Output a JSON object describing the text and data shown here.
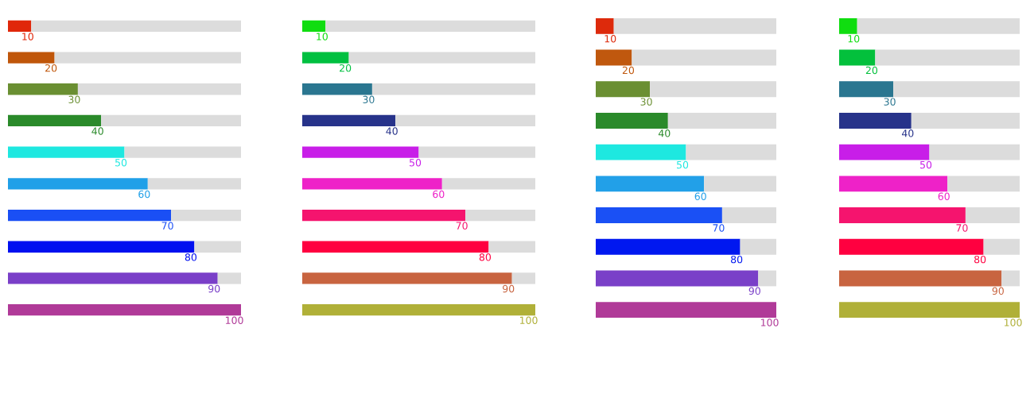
{
  "chart_data": [
    {
      "type": "bar",
      "orientation": "horizontal",
      "stacked": true,
      "categories": [
        null,
        null,
        null,
        null,
        null,
        null,
        null,
        null,
        null,
        null
      ],
      "xlim": [
        0,
        100
      ],
      "tick_labels": false,
      "series": [
        {
          "colors": [
            "#e0270a",
            "#c0560a",
            "#6a8f32",
            "#2a8a2a",
            "#1ee8e0",
            "#20a0e8",
            "#1a4ff5",
            "#0010f0",
            "#7a3fc8",
            "#b03a98"
          ],
          "values": [
            10,
            20,
            30,
            40,
            50,
            60,
            70,
            80,
            90,
            100
          ],
          "value_labels": [
            "10",
            "20",
            "30",
            "40",
            "50",
            "60",
            "70",
            "80",
            "90",
            "100"
          ]
        },
        {
          "color": "#dcdcdc",
          "values": [
            90,
            80,
            70,
            60,
            50,
            40,
            30,
            20,
            10,
            0
          ]
        }
      ]
    },
    {
      "type": "bar",
      "orientation": "horizontal",
      "stacked": true,
      "categories": [
        null,
        null,
        null,
        null,
        null,
        null,
        null,
        null,
        null,
        null
      ],
      "xlim": [
        0,
        100
      ],
      "tick_labels": false,
      "series": [
        {
          "colors": [
            "#10dd10",
            "#00c040",
            "#2a7690",
            "#27338a",
            "#c81ee8",
            "#ee22c8",
            "#f5146e",
            "#ff0040",
            "#c86440",
            "#b0b038"
          ],
          "values": [
            10,
            20,
            30,
            40,
            50,
            60,
            70,
            80,
            90,
            100
          ],
          "value_labels": [
            "10",
            "20",
            "30",
            "40",
            "50",
            "60",
            "70",
            "80",
            "90",
            "100"
          ]
        },
        {
          "color": "#dcdcdc",
          "values": [
            90,
            80,
            70,
            60,
            50,
            40,
            30,
            20,
            10,
            0
          ]
        }
      ]
    },
    {
      "type": "bar",
      "orientation": "horizontal",
      "stacked": true,
      "categories": [
        null,
        null,
        null,
        null,
        null,
        null,
        null,
        null,
        null,
        null
      ],
      "xlim": [
        0,
        100
      ],
      "tick_labels": false,
      "series": [
        {
          "colors": [
            "#dd2a0c",
            "#c0580e",
            "#6a8f32",
            "#2a8a2a",
            "#1ee8e0",
            "#22a0e8",
            "#1a50f5",
            "#0018f0",
            "#7a40c8",
            "#b03a98"
          ],
          "values": [
            10,
            20,
            30,
            40,
            50,
            60,
            70,
            80,
            90,
            100
          ],
          "value_labels": [
            "10",
            "20",
            "30",
            "40",
            "50",
            "60",
            "70",
            "80",
            "90",
            "100"
          ]
        },
        {
          "color": "#dcdcdc",
          "values": [
            90,
            80,
            70,
            60,
            50,
            40,
            30,
            20,
            10,
            0
          ]
        }
      ]
    },
    {
      "type": "bar",
      "orientation": "horizontal",
      "stacked": true,
      "categories": [
        null,
        null,
        null,
        null,
        null,
        null,
        null,
        null,
        null,
        null
      ],
      "xlim": [
        0,
        100
      ],
      "tick_labels": false,
      "series": [
        {
          "colors": [
            "#10dd10",
            "#03c03c",
            "#2a7690",
            "#27338a",
            "#c81ee8",
            "#ee22c8",
            "#f5146e",
            "#ff0040",
            "#c86440",
            "#b0b038"
          ],
          "values": [
            10,
            20,
            30,
            40,
            50,
            60,
            70,
            80,
            90,
            100
          ],
          "value_labels": [
            "10",
            "20",
            "30",
            "40",
            "50",
            "60",
            "70",
            "80",
            "90",
            "100"
          ]
        },
        {
          "color": "#dcdcdc",
          "values": [
            90,
            80,
            70,
            60,
            50,
            40,
            30,
            20,
            10,
            0
          ]
        }
      ]
    }
  ]
}
